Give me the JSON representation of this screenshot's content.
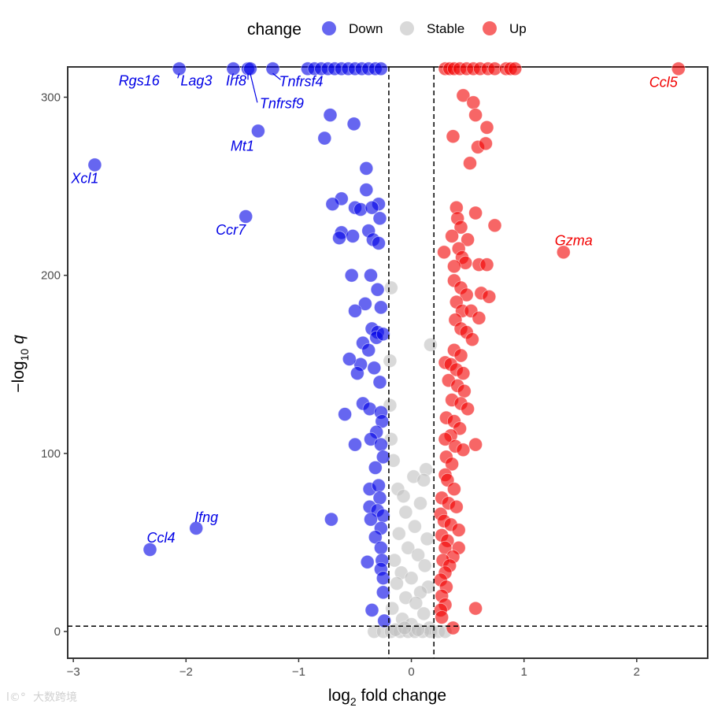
{
  "chart_data": {
    "type": "scatter",
    "title": "",
    "xlabel": "log2 fold change",
    "ylabel": "-log10 q",
    "xlim": [
      -3.05,
      2.63
    ],
    "ylim": [
      -15,
      317
    ],
    "x_ticks": [
      -3,
      -2,
      -1,
      0,
      1,
      2
    ],
    "y_ticks": [
      0,
      100,
      200,
      300
    ],
    "thresholds": {
      "fold_change": [
        -0.2,
        0.2
      ],
      "q": 3
    },
    "legend": {
      "title": "change",
      "entries": [
        {
          "name": "Down",
          "color": "#0000e6"
        },
        {
          "name": "Stable",
          "color": "#c0c0c0"
        },
        {
          "name": "Up",
          "color": "#f20000"
        }
      ]
    },
    "series": [
      {
        "name": "Down",
        "color": "#0000e6",
        "points": [
          [
            -2.06,
            316
          ],
          [
            -1.58,
            316
          ],
          [
            -1.45,
            316
          ],
          [
            -1.43,
            316
          ],
          [
            -1.23,
            316
          ],
          [
            -0.92,
            316
          ],
          [
            -0.86,
            316
          ],
          [
            -0.8,
            316
          ],
          [
            -0.74,
            316
          ],
          [
            -0.68,
            316
          ],
          [
            -0.62,
            316
          ],
          [
            -0.56,
            316
          ],
          [
            -0.5,
            316
          ],
          [
            -0.44,
            316
          ],
          [
            -0.38,
            316
          ],
          [
            -0.32,
            316
          ],
          [
            -0.27,
            316
          ],
          [
            -0.72,
            290
          ],
          [
            -0.51,
            285
          ],
          [
            -0.77,
            277
          ],
          [
            -1.36,
            281
          ],
          [
            -2.81,
            262
          ],
          [
            -1.47,
            233
          ],
          [
            -0.4,
            260
          ],
          [
            -0.4,
            248
          ],
          [
            -0.62,
            243
          ],
          [
            -0.7,
            240
          ],
          [
            -0.5,
            238
          ],
          [
            -0.45,
            237
          ],
          [
            -0.29,
            240
          ],
          [
            -0.35,
            238
          ],
          [
            -0.28,
            232
          ],
          [
            -0.62,
            224
          ],
          [
            -0.64,
            221
          ],
          [
            -0.52,
            222
          ],
          [
            -0.38,
            225
          ],
          [
            -0.34,
            220
          ],
          [
            -0.29,
            218
          ],
          [
            -0.53,
            200
          ],
          [
            -0.36,
            200
          ],
          [
            -0.3,
            192
          ],
          [
            -0.41,
            184
          ],
          [
            -0.5,
            180
          ],
          [
            -0.27,
            182
          ],
          [
            -0.35,
            170
          ],
          [
            -0.3,
            168
          ],
          [
            -0.43,
            162
          ],
          [
            -0.31,
            165
          ],
          [
            -0.25,
            167
          ],
          [
            -0.38,
            158
          ],
          [
            -0.45,
            150
          ],
          [
            -0.55,
            153
          ],
          [
            -0.33,
            148
          ],
          [
            -0.48,
            145
          ],
          [
            -0.28,
            140
          ],
          [
            -0.43,
            128
          ],
          [
            -0.37,
            125
          ],
          [
            -0.27,
            123
          ],
          [
            -0.26,
            118
          ],
          [
            -0.31,
            112
          ],
          [
            -0.59,
            122
          ],
          [
            -0.5,
            105
          ],
          [
            -0.36,
            108
          ],
          [
            -0.27,
            105
          ],
          [
            -0.25,
            98
          ],
          [
            -0.32,
            92
          ],
          [
            -0.37,
            80
          ],
          [
            -0.29,
            82
          ],
          [
            -0.28,
            75
          ],
          [
            -0.37,
            70
          ],
          [
            -0.3,
            68
          ],
          [
            -0.25,
            65
          ],
          [
            -0.36,
            63
          ],
          [
            -0.27,
            58
          ],
          [
            -0.71,
            63
          ],
          [
            -0.32,
            53
          ],
          [
            -0.27,
            47
          ],
          [
            -0.26,
            40
          ],
          [
            -0.39,
            39
          ],
          [
            -0.27,
            35
          ],
          [
            -0.25,
            30
          ],
          [
            -0.25,
            22
          ],
          [
            -0.35,
            12
          ],
          [
            -0.24,
            6
          ],
          [
            -1.91,
            58
          ],
          [
            -2.32,
            46
          ]
        ],
        "labels": [
          {
            "gene": "Rgs16",
            "x": -2.06,
            "y": 316
          },
          {
            "gene": "Lag3",
            "x": -1.58,
            "y": 316
          },
          {
            "gene": "Irf8",
            "x": -1.45,
            "y": 316
          },
          {
            "gene": "Tnfrsf4",
            "x": -1.23,
            "y": 316
          },
          {
            "gene": "Tnfrsf9",
            "x": -1.43,
            "y": 316
          },
          {
            "gene": "Mt1",
            "x": -1.36,
            "y": 281
          },
          {
            "gene": "Xcl1",
            "x": -2.81,
            "y": 262
          },
          {
            "gene": "Ccr7",
            "x": -1.47,
            "y": 233
          },
          {
            "gene": "Ifng",
            "x": -1.91,
            "y": 58
          },
          {
            "gene": "Ccl4",
            "x": -2.32,
            "y": 46
          }
        ]
      },
      {
        "name": "Stable",
        "color": "#c0c0c0",
        "points": [
          [
            -0.18,
            193
          ],
          [
            -0.19,
            152
          ],
          [
            0.17,
            161
          ],
          [
            -0.19,
            127
          ],
          [
            -0.18,
            108
          ],
          [
            -0.16,
            96
          ],
          [
            0.13,
            91
          ],
          [
            0.02,
            87
          ],
          [
            0.11,
            85
          ],
          [
            -0.12,
            80
          ],
          [
            -0.07,
            76
          ],
          [
            0.08,
            72
          ],
          [
            -0.05,
            67
          ],
          [
            0.03,
            59
          ],
          [
            -0.11,
            55
          ],
          [
            0.14,
            52
          ],
          [
            -0.03,
            47
          ],
          [
            0.06,
            43
          ],
          [
            -0.15,
            40
          ],
          [
            0.12,
            37
          ],
          [
            -0.09,
            33
          ],
          [
            0.0,
            30
          ],
          [
            -0.13,
            27
          ],
          [
            0.15,
            25
          ],
          [
            0.08,
            22
          ],
          [
            -0.05,
            19
          ],
          [
            0.04,
            16
          ],
          [
            -0.17,
            13
          ],
          [
            0.11,
            10
          ],
          [
            -0.08,
            7
          ],
          [
            0.0,
            4
          ],
          [
            0.16,
            2
          ],
          [
            -0.33,
            0
          ],
          [
            -0.25,
            0
          ],
          [
            -0.18,
            0
          ],
          [
            -0.1,
            0
          ],
          [
            -0.03,
            0
          ],
          [
            0.03,
            0
          ],
          [
            0.1,
            0
          ],
          [
            0.17,
            0
          ],
          [
            0.24,
            0
          ],
          [
            0.3,
            0
          ],
          [
            -0.14,
            1
          ],
          [
            0.06,
            1
          ],
          [
            -0.06,
            2
          ]
        ]
      },
      {
        "name": "Up",
        "color": "#f20000",
        "points": [
          [
            0.3,
            316
          ],
          [
            0.34,
            316
          ],
          [
            0.38,
            316
          ],
          [
            0.43,
            316
          ],
          [
            0.49,
            316
          ],
          [
            0.55,
            316
          ],
          [
            0.61,
            316
          ],
          [
            0.68,
            316
          ],
          [
            0.74,
            316
          ],
          [
            0.84,
            316
          ],
          [
            0.88,
            316
          ],
          [
            0.92,
            316
          ],
          [
            2.37,
            316
          ],
          [
            0.46,
            301
          ],
          [
            0.55,
            297
          ],
          [
            0.57,
            290
          ],
          [
            0.67,
            283
          ],
          [
            0.37,
            278
          ],
          [
            0.59,
            272
          ],
          [
            0.66,
            274
          ],
          [
            0.52,
            263
          ],
          [
            0.4,
            238
          ],
          [
            0.41,
            232
          ],
          [
            0.44,
            227
          ],
          [
            0.57,
            235
          ],
          [
            0.74,
            228
          ],
          [
            0.36,
            222
          ],
          [
            0.5,
            220
          ],
          [
            0.42,
            215
          ],
          [
            0.29,
            213
          ],
          [
            0.45,
            210
          ],
          [
            0.48,
            207
          ],
          [
            0.38,
            205
          ],
          [
            0.6,
            206
          ],
          [
            0.67,
            206
          ],
          [
            1.35,
            213
          ],
          [
            0.38,
            197
          ],
          [
            0.44,
            193
          ],
          [
            0.49,
            189
          ],
          [
            0.62,
            190
          ],
          [
            0.69,
            188
          ],
          [
            0.4,
            185
          ],
          [
            0.45,
            180
          ],
          [
            0.53,
            180
          ],
          [
            0.39,
            175
          ],
          [
            0.6,
            176
          ],
          [
            0.44,
            170
          ],
          [
            0.49,
            168
          ],
          [
            0.54,
            164
          ],
          [
            0.38,
            158
          ],
          [
            0.44,
            155
          ],
          [
            0.3,
            151
          ],
          [
            0.35,
            150
          ],
          [
            0.4,
            147
          ],
          [
            0.46,
            145
          ],
          [
            0.33,
            141
          ],
          [
            0.41,
            138
          ],
          [
            0.47,
            135
          ],
          [
            0.36,
            130
          ],
          [
            0.44,
            128
          ],
          [
            0.5,
            125
          ],
          [
            0.31,
            120
          ],
          [
            0.38,
            118
          ],
          [
            0.43,
            114
          ],
          [
            0.35,
            110
          ],
          [
            0.3,
            108
          ],
          [
            0.39,
            104
          ],
          [
            0.46,
            102
          ],
          [
            0.57,
            105
          ],
          [
            0.31,
            98
          ],
          [
            0.36,
            94
          ],
          [
            0.3,
            88
          ],
          [
            0.32,
            85
          ],
          [
            0.38,
            80
          ],
          [
            0.27,
            75
          ],
          [
            0.33,
            72
          ],
          [
            0.4,
            70
          ],
          [
            0.26,
            66
          ],
          [
            0.29,
            62
          ],
          [
            0.35,
            60
          ],
          [
            0.42,
            57
          ],
          [
            0.27,
            54
          ],
          [
            0.32,
            51
          ],
          [
            0.3,
            47
          ],
          [
            0.42,
            47
          ],
          [
            0.37,
            42
          ],
          [
            0.28,
            40
          ],
          [
            0.34,
            37
          ],
          [
            0.3,
            33
          ],
          [
            0.26,
            29
          ],
          [
            0.31,
            25
          ],
          [
            0.27,
            20
          ],
          [
            0.3,
            15
          ],
          [
            0.26,
            12
          ],
          [
            0.57,
            13
          ],
          [
            0.27,
            8
          ],
          [
            0.37,
            2
          ]
        ],
        "labels": [
          {
            "gene": "Ccl5",
            "x": 2.37,
            "y": 316
          },
          {
            "gene": "Gzma",
            "x": 1.35,
            "y": 213
          }
        ]
      }
    ]
  },
  "watermark": {
    "text": "大数跨境"
  }
}
